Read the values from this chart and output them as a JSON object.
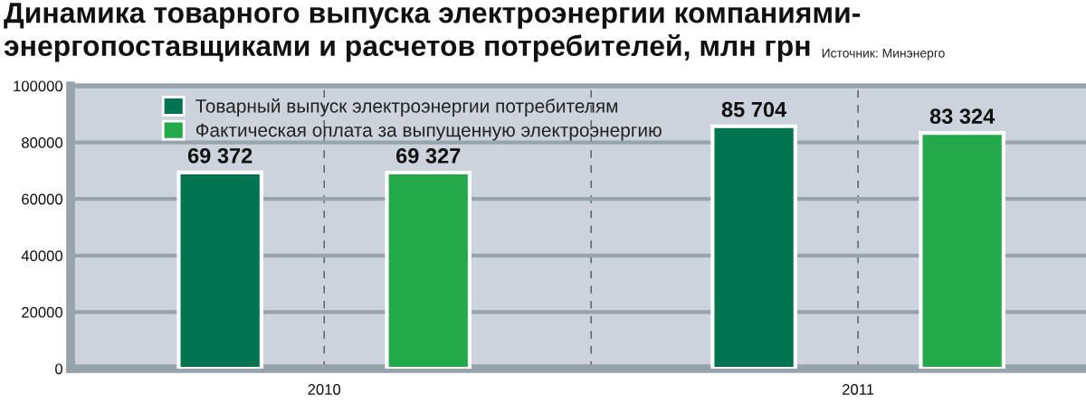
{
  "chart_data": {
    "type": "bar",
    "title": "Динамика товарного выпуска электроэнергии компаниями-\nэнергопоставщиками и расчетов потребителей, млн грн",
    "annotations": [
      "Источник: Минэнерго"
    ],
    "categories": [
      "2010",
      "2011"
    ],
    "series": [
      {
        "name": "Товарный выпуск электроэнергии потребителям",
        "color": "#00734f",
        "values": [
          69372,
          85704
        ],
        "value_labels": [
          "69 372",
          "85 704"
        ]
      },
      {
        "name": "Фактическая оплата за выпущенную электроэнергию",
        "color": "#23a84a",
        "values": [
          69327,
          83324
        ],
        "value_labels": [
          "69 327",
          "83 324"
        ]
      }
    ],
    "ylim": [
      0,
      100000
    ],
    "yticks": [
      0,
      20000,
      40000,
      60000,
      80000,
      100000
    ],
    "grid": true,
    "legend": "top left"
  }
}
